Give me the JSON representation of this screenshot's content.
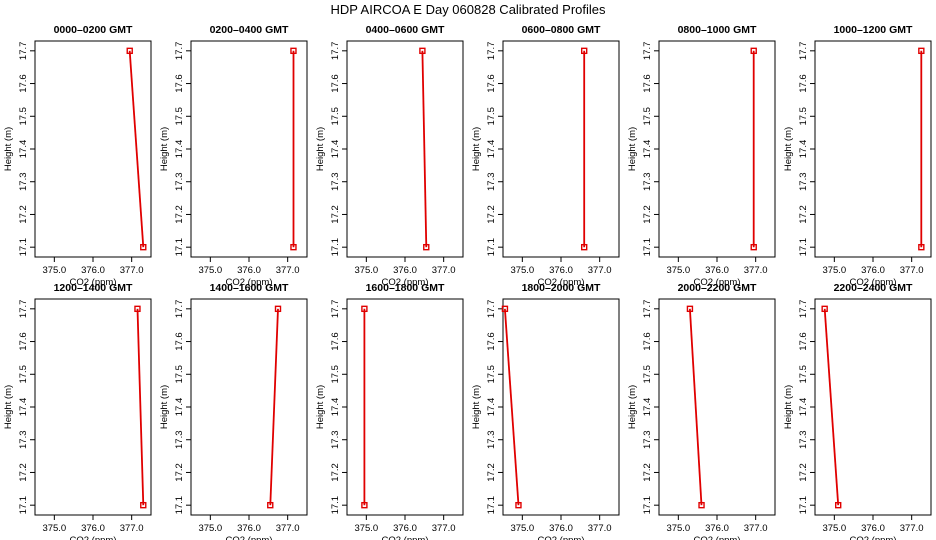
{
  "figure_title": "HDP  AIRCOA E  Day 060828  Calibrated Profiles",
  "colors": {
    "series": "#e00000",
    "axis": "#000000",
    "background": "#ffffff"
  },
  "chart_data": [
    {
      "type": "line",
      "title": "0000–0200 GMT",
      "xlabel": "CO2 (ppm)",
      "ylabel": "Height (m)",
      "xlim": [
        374.5,
        377.5
      ],
      "ylim": [
        17.07,
        17.73
      ],
      "xticks": [
        "375.0",
        "376.0",
        "377.0"
      ],
      "yticks": [
        "17.1",
        "17.2",
        "17.3",
        "17.4",
        "17.5",
        "17.6",
        "17.7"
      ],
      "grid": false,
      "points": [
        {
          "x": 377.3,
          "y": 17.1
        },
        {
          "x": 376.95,
          "y": 17.7
        }
      ]
    },
    {
      "type": "line",
      "title": "0200–0400 GMT",
      "xlabel": "CO2 (ppm)",
      "ylabel": "Height (m)",
      "xlim": [
        374.5,
        377.5
      ],
      "ylim": [
        17.07,
        17.73
      ],
      "xticks": [
        "375.0",
        "376.0",
        "377.0"
      ],
      "yticks": [
        "17.1",
        "17.2",
        "17.3",
        "17.4",
        "17.5",
        "17.6",
        "17.7"
      ],
      "grid": false,
      "points": [
        {
          "x": 377.15,
          "y": 17.1
        },
        {
          "x": 377.15,
          "y": 17.7
        }
      ]
    },
    {
      "type": "line",
      "title": "0400–0600 GMT",
      "xlabel": "CO2 (ppm)",
      "ylabel": "Height (m)",
      "xlim": [
        374.5,
        377.5
      ],
      "ylim": [
        17.07,
        17.73
      ],
      "xticks": [
        "375.0",
        "376.0",
        "377.0"
      ],
      "yticks": [
        "17.1",
        "17.2",
        "17.3",
        "17.4",
        "17.5",
        "17.6",
        "17.7"
      ],
      "grid": false,
      "points": [
        {
          "x": 376.55,
          "y": 17.1
        },
        {
          "x": 376.45,
          "y": 17.7
        }
      ]
    },
    {
      "type": "line",
      "title": "0600–0800 GMT",
      "xlabel": "CO2 (ppm)",
      "ylabel": "Height (m)",
      "xlim": [
        374.5,
        377.5
      ],
      "ylim": [
        17.07,
        17.73
      ],
      "xticks": [
        "375.0",
        "376.0",
        "377.0"
      ],
      "yticks": [
        "17.1",
        "17.2",
        "17.3",
        "17.4",
        "17.5",
        "17.6",
        "17.7"
      ],
      "grid": false,
      "points": [
        {
          "x": 376.6,
          "y": 17.1
        },
        {
          "x": 376.6,
          "y": 17.7
        }
      ]
    },
    {
      "type": "line",
      "title": "0800–1000 GMT",
      "xlabel": "CO2 (ppm)",
      "ylabel": "Height (m)",
      "xlim": [
        374.5,
        377.5
      ],
      "ylim": [
        17.07,
        17.73
      ],
      "xticks": [
        "375.0",
        "376.0",
        "377.0"
      ],
      "yticks": [
        "17.1",
        "17.2",
        "17.3",
        "17.4",
        "17.5",
        "17.6",
        "17.7"
      ],
      "grid": false,
      "points": [
        {
          "x": 376.95,
          "y": 17.1
        },
        {
          "x": 376.95,
          "y": 17.7
        }
      ]
    },
    {
      "type": "line",
      "title": "1000–1200 GMT",
      "xlabel": "CO2 (ppm)",
      "ylabel": "Height (m)",
      "xlim": [
        374.5,
        377.5
      ],
      "ylim": [
        17.07,
        17.73
      ],
      "xticks": [
        "375.0",
        "376.0",
        "377.0"
      ],
      "yticks": [
        "17.1",
        "17.2",
        "17.3",
        "17.4",
        "17.5",
        "17.6",
        "17.7"
      ],
      "grid": false,
      "points": [
        {
          "x": 377.25,
          "y": 17.1
        },
        {
          "x": 377.25,
          "y": 17.7
        }
      ]
    },
    {
      "type": "line",
      "title": "1200–1400 GMT",
      "xlabel": "CO2 (ppm)",
      "ylabel": "Height (m)",
      "xlim": [
        374.5,
        377.5
      ],
      "ylim": [
        17.07,
        17.73
      ],
      "xticks": [
        "375.0",
        "376.0",
        "377.0"
      ],
      "yticks": [
        "17.1",
        "17.2",
        "17.3",
        "17.4",
        "17.5",
        "17.6",
        "17.7"
      ],
      "grid": false,
      "points": [
        {
          "x": 377.3,
          "y": 17.1
        },
        {
          "x": 377.15,
          "y": 17.7
        }
      ]
    },
    {
      "type": "line",
      "title": "1400–1600 GMT",
      "xlabel": "CO2 (ppm)",
      "ylabel": "Height (m)",
      "xlim": [
        374.5,
        377.5
      ],
      "ylim": [
        17.07,
        17.73
      ],
      "xticks": [
        "375.0",
        "376.0",
        "377.0"
      ],
      "yticks": [
        "17.1",
        "17.2",
        "17.3",
        "17.4",
        "17.5",
        "17.6",
        "17.7"
      ],
      "grid": false,
      "points": [
        {
          "x": 376.55,
          "y": 17.1
        },
        {
          "x": 376.75,
          "y": 17.7
        }
      ]
    },
    {
      "type": "line",
      "title": "1600–1800 GMT",
      "xlabel": "CO2 (ppm)",
      "ylabel": "Height (m)",
      "xlim": [
        374.5,
        377.5
      ],
      "ylim": [
        17.07,
        17.73
      ],
      "xticks": [
        "375.0",
        "376.0",
        "377.0"
      ],
      "yticks": [
        "17.1",
        "17.2",
        "17.3",
        "17.4",
        "17.5",
        "17.6",
        "17.7"
      ],
      "grid": false,
      "points": [
        {
          "x": 374.95,
          "y": 17.1
        },
        {
          "x": 374.95,
          "y": 17.7
        }
      ]
    },
    {
      "type": "line",
      "title": "1800–2000 GMT",
      "xlabel": "CO2 (ppm)",
      "ylabel": "Height (m)",
      "xlim": [
        374.5,
        377.5
      ],
      "ylim": [
        17.07,
        17.73
      ],
      "xticks": [
        "375.0",
        "376.0",
        "377.0"
      ],
      "yticks": [
        "17.1",
        "17.2",
        "17.3",
        "17.4",
        "17.5",
        "17.6",
        "17.7"
      ],
      "grid": false,
      "points": [
        {
          "x": 374.9,
          "y": 17.1
        },
        {
          "x": 374.55,
          "y": 17.7
        }
      ]
    },
    {
      "type": "line",
      "title": "2000–2200 GMT",
      "xlabel": "CO2 (ppm)",
      "ylabel": "Height (m)",
      "xlim": [
        374.5,
        377.5
      ],
      "ylim": [
        17.07,
        17.73
      ],
      "xticks": [
        "375.0",
        "376.0",
        "377.0"
      ],
      "yticks": [
        "17.1",
        "17.2",
        "17.3",
        "17.4",
        "17.5",
        "17.6",
        "17.7"
      ],
      "grid": false,
      "points": [
        {
          "x": 375.6,
          "y": 17.1
        },
        {
          "x": 375.3,
          "y": 17.7
        }
      ]
    },
    {
      "type": "line",
      "title": "2200–2400 GMT",
      "xlabel": "CO2 (ppm)",
      "ylabel": "Height (m)",
      "xlim": [
        374.5,
        377.5
      ],
      "ylim": [
        17.07,
        17.73
      ],
      "xticks": [
        "375.0",
        "376.0",
        "377.0"
      ],
      "yticks": [
        "17.1",
        "17.2",
        "17.3",
        "17.4",
        "17.5",
        "17.6",
        "17.7"
      ],
      "grid": false,
      "points": [
        {
          "x": 375.1,
          "y": 17.1
        },
        {
          "x": 374.75,
          "y": 17.7
        }
      ]
    }
  ]
}
